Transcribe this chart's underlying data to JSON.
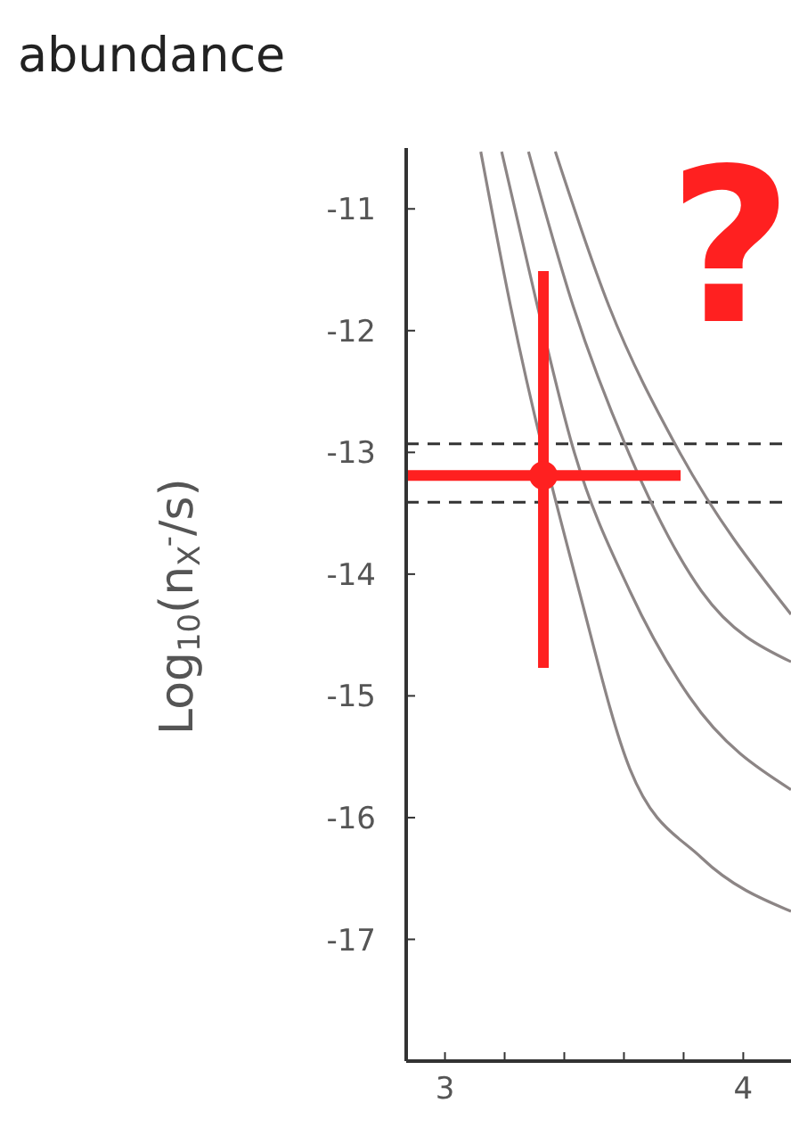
{
  "chart_data": {
    "type": "line",
    "title": "abundance",
    "ylabel": "Log$_{10}$(n$_{X}$$^{-}$/s)",
    "annotations": [
      "?"
    ],
    "xlim": [
      2.87,
      4.16
    ],
    "ylim": [
      -18,
      -10.5
    ],
    "xticks": [
      3,
      {
        "value": 3.2,
        "label": null
      },
      {
        "value": 3.4,
        "label": null
      },
      {
        "value": 3.6,
        "label": null
      },
      {
        "value": 3.8,
        "label": null
      },
      4
    ],
    "yticks": [
      -11,
      -12,
      -13,
      -14,
      -15,
      -16,
      -17
    ],
    "series": [
      {
        "color": "#8c8585",
        "x": [
          3.12,
          3.22,
          3.45,
          3.62,
          3.86,
          4.16
        ],
        "values": [
          -10.53,
          -11.8,
          -14.14,
          -15.6,
          -16.33,
          -16.77
        ]
      },
      {
        "color": "#8c8585",
        "x": [
          3.19,
          3.31,
          3.43,
          3.62,
          3.82,
          4.16
        ],
        "values": [
          -10.53,
          -11.8,
          -12.97,
          -14.14,
          -15.01,
          -15.77
        ]
      },
      {
        "color": "#8c8585",
        "x": [
          3.28,
          3.43,
          3.61,
          3.86,
          4.16
        ],
        "values": [
          -10.53,
          -11.8,
          -12.97,
          -14.14,
          -14.72
        ]
      },
      {
        "color": "#8c8585",
        "x": [
          3.37,
          3.55,
          3.78,
          4.16
        ],
        "values": [
          -10.53,
          -11.8,
          -12.97,
          -14.33
        ]
      },
      {
        "type": "scatter",
        "color": "#ff2020",
        "x": [
          3.33
        ],
        "values": [
          -13.19
        ],
        "errors": [
          [
            -14.77,
            -11.51
          ]
        ],
        "xerrors": [
          [
            2.87,
            3.79
          ]
        ]
      }
    ],
    "ref_lines": [
      {
        "axis": "y",
        "value": -12.93,
        "color": "#333333",
        "line_style": "dashed"
      },
      {
        "axis": "y",
        "value": -13.41,
        "color": "#333333",
        "line_style": "dashed"
      }
    ]
  }
}
